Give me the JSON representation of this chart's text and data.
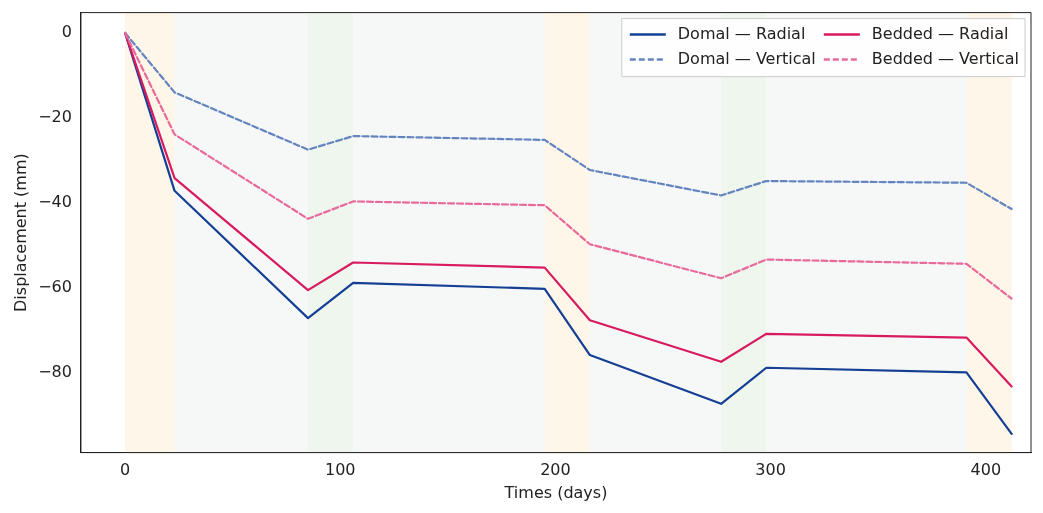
{
  "chart_data": {
    "type": "line",
    "xlabel": "Times (days)",
    "ylabel": "Displacement (mm)",
    "x": [
      0,
      23,
      85,
      106,
      195,
      216,
      277,
      298,
      391,
      412
    ],
    "xlim": [
      -20.5,
      421
    ],
    "xticks": [
      0,
      100,
      200,
      300,
      400
    ],
    "ylim": [
      -98.9,
      4.8
    ],
    "yticks": [
      {
        "value": 0,
        "label": "0"
      },
      {
        "value": -20,
        "label": "−20"
      },
      {
        "value": -40,
        "label": "−40"
      },
      {
        "value": -60,
        "label": "−60"
      },
      {
        "value": -80,
        "label": "−80"
      }
    ],
    "grid": false,
    "legend": "top right",
    "marker": "none",
    "series": [
      {
        "name": "Domal — Radial",
        "color": "#153f94",
        "line_style": "solid",
        "values": [
          0,
          -37.2,
          -67.2,
          -58.9,
          -60.3,
          -75.9,
          -87.4,
          -78.9,
          -80,
          -94.5
        ]
      },
      {
        "name": "Domal — Vertical",
        "color": "#6484c0",
        "line_style": "dashed",
        "values": [
          0,
          -14,
          -27.5,
          -24.3,
          -25.2,
          -32.3,
          -38.3,
          -34.9,
          -35.3,
          -41.5
        ]
      },
      {
        "name": "Bedded — Radial",
        "color": "#d81b60",
        "line_style": "solid",
        "values": [
          0,
          -34.2,
          -60.6,
          -54.1,
          -55.3,
          -67.7,
          -77.5,
          -70.9,
          -71.8,
          -83.3
        ]
      },
      {
        "name": "Bedded — Vertical",
        "color": "#e8699a",
        "line_style": "dashed",
        "values": [
          0,
          -23.9,
          -43.8,
          -39.7,
          -40.6,
          -49.8,
          -57.8,
          -53.4,
          -54.4,
          -62.6
        ]
      }
    ],
    "bands": [
      {
        "axis": "x",
        "from": 0,
        "to": 23,
        "color": "#fff6ea"
      },
      {
        "axis": "x",
        "from": 23,
        "to": 85,
        "color": "#f5f8f6"
      },
      {
        "axis": "x",
        "from": 85,
        "to": 106,
        "color": "#eef6ee"
      },
      {
        "axis": "x",
        "from": 106,
        "to": 195,
        "color": "#f5f8f6"
      },
      {
        "axis": "x",
        "from": 195,
        "to": 216,
        "color": "#fff6ea"
      },
      {
        "axis": "x",
        "from": 216,
        "to": 277,
        "color": "#f5f8f6"
      },
      {
        "axis": "x",
        "from": 277,
        "to": 298,
        "color": "#eef6ee"
      },
      {
        "axis": "x",
        "from": 298,
        "to": 391,
        "color": "#f5f8f6"
      },
      {
        "axis": "x",
        "from": 391,
        "to": 412,
        "color": "#fff6ea"
      }
    ]
  }
}
